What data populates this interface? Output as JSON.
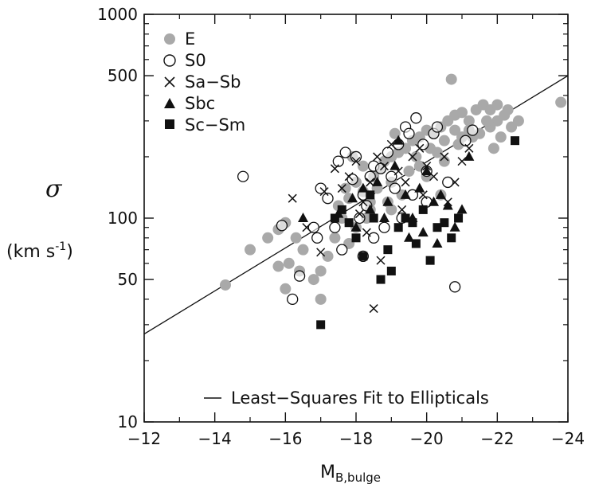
{
  "chart_data": {
    "type": "scatter",
    "title": "",
    "xlabel_main": "M",
    "xlabel_sub": "B,bulge",
    "ylabel_symbol": "σ",
    "ylabel_unit_base": "(km s",
    "ylabel_unit_exp": "-1",
    "ylabel_unit_close": ")",
    "xlim": [
      -12,
      -24
    ],
    "ylim": [
      10,
      1000
    ],
    "yscale": "log",
    "x_ticks": [
      -12,
      -14,
      -16,
      -18,
      -20,
      -22,
      -24
    ],
    "x_tick_labels": [
      "−12",
      "−14",
      "−16",
      "−18",
      "−20",
      "−22",
      "−24"
    ],
    "y_ticks": [
      10,
      50,
      100,
      500,
      1000
    ],
    "y_tick_labels": [
      "10",
      "50",
      "100",
      "500",
      "1000"
    ],
    "legend_position": "top-left",
    "fit_legend_label": "Least−Squares Fit to Ellipticals",
    "fit_line": {
      "x": [
        -12,
        -24
      ],
      "y": [
        27,
        500
      ]
    },
    "series": [
      {
        "name": "E",
        "marker": "filled-circle",
        "color": "#a9a9a9",
        "points": [
          [
            -14.3,
            47
          ],
          [
            -15.0,
            70
          ],
          [
            -15.5,
            80
          ],
          [
            -15.8,
            88
          ],
          [
            -16.0,
            95
          ],
          [
            -16.3,
            80
          ],
          [
            -16.5,
            70
          ],
          [
            -16.4,
            55
          ],
          [
            -16.0,
            45
          ],
          [
            -15.8,
            58
          ],
          [
            -16.1,
            60
          ],
          [
            -17.0,
            55
          ],
          [
            -16.8,
            50
          ],
          [
            -17.0,
            40
          ],
          [
            -17.2,
            65
          ],
          [
            -17.4,
            80
          ],
          [
            -17.6,
            100
          ],
          [
            -17.5,
            115
          ],
          [
            -17.8,
            125
          ],
          [
            -17.7,
            140
          ],
          [
            -18.0,
            150
          ],
          [
            -18.2,
            135
          ],
          [
            -18.4,
            120
          ],
          [
            -18.5,
            160
          ],
          [
            -18.7,
            175
          ],
          [
            -18.8,
            190
          ],
          [
            -19.0,
            200
          ],
          [
            -19.2,
            210
          ],
          [
            -19.4,
            220
          ],
          [
            -19.1,
            260
          ],
          [
            -19.6,
            240
          ],
          [
            -19.8,
            250
          ],
          [
            -20.0,
            270
          ],
          [
            -20.2,
            260
          ],
          [
            -20.4,
            280
          ],
          [
            -20.6,
            300
          ],
          [
            -20.5,
            240
          ],
          [
            -20.8,
            320
          ],
          [
            -21.0,
            330
          ],
          [
            -21.2,
            300
          ],
          [
            -21.4,
            340
          ],
          [
            -21.6,
            360
          ],
          [
            -21.8,
            340
          ],
          [
            -22.0,
            300
          ],
          [
            -22.2,
            320
          ],
          [
            -22.4,
            280
          ],
          [
            -22.6,
            300
          ],
          [
            -21.5,
            260
          ],
          [
            -21.0,
            250
          ],
          [
            -20.7,
            480
          ],
          [
            -23.8,
            370
          ],
          [
            -22.0,
            360
          ],
          [
            -21.8,
            280
          ],
          [
            -21.2,
            270
          ],
          [
            -20.9,
            230
          ],
          [
            -20.3,
            210
          ],
          [
            -19.8,
            180
          ],
          [
            -19.5,
            170
          ],
          [
            -19.0,
            150
          ],
          [
            -18.6,
            140
          ],
          [
            -18.3,
            100
          ],
          [
            -18.0,
            90
          ],
          [
            -17.8,
            75
          ],
          [
            -18.4,
            110
          ],
          [
            -19.3,
            130
          ],
          [
            -20.0,
            160
          ],
          [
            -20.5,
            190
          ],
          [
            -21.3,
            250
          ],
          [
            -21.7,
            300
          ],
          [
            -22.1,
            250
          ],
          [
            -22.3,
            340
          ],
          [
            -21.9,
            220
          ],
          [
            -20.8,
            270
          ],
          [
            -20.1,
            220
          ],
          [
            -19.7,
            200
          ],
          [
            -18.9,
            120
          ],
          [
            -18.2,
            180
          ],
          [
            -17.9,
            200
          ],
          [
            -20.4,
            130
          ],
          [
            -19.0,
            110
          ]
        ]
      },
      {
        "name": "S0",
        "marker": "open-circle",
        "color": "#111111",
        "points": [
          [
            -14.8,
            160
          ],
          [
            -15.9,
            92
          ],
          [
            -16.2,
            40
          ],
          [
            -16.4,
            52
          ],
          [
            -16.8,
            90
          ],
          [
            -17.0,
            140
          ],
          [
            -17.2,
            125
          ],
          [
            -17.5,
            190
          ],
          [
            -17.7,
            210
          ],
          [
            -17.9,
            155
          ],
          [
            -18.0,
            200
          ],
          [
            -18.2,
            130
          ],
          [
            -18.4,
            160
          ],
          [
            -18.5,
            180
          ],
          [
            -18.7,
            175
          ],
          [
            -18.9,
            210
          ],
          [
            -19.0,
            160
          ],
          [
            -19.2,
            230
          ],
          [
            -19.4,
            280
          ],
          [
            -19.5,
            260
          ],
          [
            -19.7,
            310
          ],
          [
            -19.9,
            230
          ],
          [
            -20.0,
            170
          ],
          [
            -20.2,
            260
          ],
          [
            -20.3,
            280
          ],
          [
            -20.6,
            150
          ],
          [
            -20.8,
            46
          ],
          [
            -18.1,
            100
          ],
          [
            -18.5,
            80
          ],
          [
            -18.2,
            65
          ],
          [
            -17.6,
            70
          ],
          [
            -18.8,
            90
          ],
          [
            -19.6,
            130
          ],
          [
            -19.1,
            140
          ],
          [
            -18.3,
            115
          ],
          [
            -17.4,
            90
          ],
          [
            -16.9,
            80
          ],
          [
            -20.0,
            120
          ],
          [
            -19.3,
            100
          ],
          [
            -21.1,
            240
          ],
          [
            -21.3,
            270
          ]
        ]
      },
      {
        "name": "Sa−Sb",
        "marker": "x",
        "color": "#111111",
        "points": [
          [
            -16.2,
            125
          ],
          [
            -16.6,
            90
          ],
          [
            -17.0,
            68
          ],
          [
            -17.1,
            135
          ],
          [
            -17.4,
            175
          ],
          [
            -17.6,
            140
          ],
          [
            -17.8,
            160
          ],
          [
            -18.0,
            190
          ],
          [
            -18.2,
            120
          ],
          [
            -18.4,
            150
          ],
          [
            -18.6,
            200
          ],
          [
            -18.8,
            180
          ],
          [
            -19.0,
            230
          ],
          [
            -19.2,
            170
          ],
          [
            -19.4,
            150
          ],
          [
            -19.6,
            200
          ],
          [
            -19.8,
            220
          ],
          [
            -20.0,
            180
          ],
          [
            -20.2,
            160
          ],
          [
            -20.5,
            200
          ],
          [
            -20.8,
            150
          ],
          [
            -21.0,
            190
          ],
          [
            -21.2,
            220
          ],
          [
            -18.5,
            36
          ],
          [
            -18.7,
            62
          ],
          [
            -18.3,
            85
          ],
          [
            -19.3,
            110
          ],
          [
            -19.9,
            130
          ],
          [
            -20.6,
            120
          ],
          [
            -18.1,
            105
          ]
        ]
      },
      {
        "name": "Sbc",
        "marker": "filled-triangle",
        "color": "#111111",
        "points": [
          [
            -16.5,
            100
          ],
          [
            -17.5,
            105
          ],
          [
            -17.9,
            125
          ],
          [
            -18.2,
            140
          ],
          [
            -18.4,
            110
          ],
          [
            -18.6,
            150
          ],
          [
            -18.9,
            120
          ],
          [
            -19.1,
            180
          ],
          [
            -19.2,
            240
          ],
          [
            -19.4,
            130
          ],
          [
            -19.6,
            100
          ],
          [
            -19.8,
            140
          ],
          [
            -20.0,
            170
          ],
          [
            -20.2,
            120
          ],
          [
            -20.4,
            130
          ],
          [
            -20.6,
            115
          ],
          [
            -20.8,
            90
          ],
          [
            -21.0,
            110
          ],
          [
            -21.2,
            200
          ],
          [
            -19.5,
            80
          ],
          [
            -19.9,
            85
          ],
          [
            -20.3,
            75
          ],
          [
            -18.8,
            100
          ],
          [
            -18.0,
            90
          ]
        ]
      },
      {
        "name": "Sc−Sm",
        "marker": "filled-square",
        "color": "#111111",
        "points": [
          [
            -17.0,
            30
          ],
          [
            -17.4,
            100
          ],
          [
            -17.8,
            95
          ],
          [
            -18.0,
            80
          ],
          [
            -18.2,
            65
          ],
          [
            -18.5,
            100
          ],
          [
            -18.7,
            50
          ],
          [
            -18.9,
            70
          ],
          [
            -19.2,
            90
          ],
          [
            -19.4,
            100
          ],
          [
            -19.7,
            75
          ],
          [
            -19.9,
            110
          ],
          [
            -20.1,
            62
          ],
          [
            -20.3,
            90
          ],
          [
            -20.5,
            95
          ],
          [
            -20.7,
            80
          ],
          [
            -20.9,
            100
          ],
          [
            -19.0,
            55
          ],
          [
            -18.4,
            130
          ],
          [
            -17.6,
            110
          ],
          [
            -19.6,
            95
          ],
          [
            -22.5,
            240
          ]
        ]
      }
    ]
  }
}
